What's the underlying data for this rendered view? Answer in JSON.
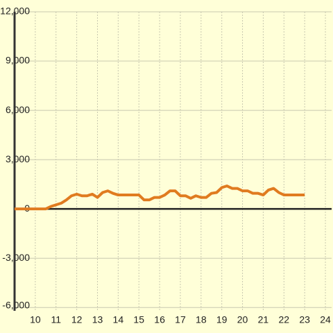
{
  "chart_data": {
    "type": "line",
    "x": [
      9,
      10.5,
      10.75,
      11,
      11.25,
      11.5,
      11.75,
      12,
      12.25,
      12.5,
      12.75,
      13,
      13.25,
      13.5,
      13.75,
      14,
      14.5,
      15,
      15.25,
      15.5,
      15.75,
      16,
      16.25,
      16.5,
      16.75,
      17,
      17.25,
      17.5,
      17.75,
      18,
      18.25,
      18.5,
      18.75,
      19,
      19.25,
      19.5,
      19.75,
      20,
      20.25,
      20.5,
      20.75,
      21,
      21.25,
      21.5,
      21.75,
      22,
      23
    ],
    "series": [
      {
        "color": "#e07b20",
        "values": [
          0,
          0,
          150,
          250,
          350,
          550,
          800,
          900,
          800,
          800,
          900,
          700,
          1000,
          1100,
          950,
          850,
          850,
          850,
          550,
          550,
          700,
          700,
          850,
          1100,
          1100,
          800,
          800,
          650,
          800,
          700,
          700,
          950,
          1000,
          1300,
          1400,
          1250,
          1250,
          1100,
          1100,
          950,
          950,
          850,
          1150,
          1250,
          1000,
          850,
          850
        ]
      }
    ],
    "xlim": [
      9,
      24.3
    ],
    "xticks": [
      10,
      11,
      12,
      13,
      14,
      15,
      16,
      17,
      18,
      19,
      20,
      21,
      22,
      23,
      24
    ],
    "ylim": [
      -6200,
      12000
    ],
    "yticks": [
      {
        "value": -6000,
        "label": "-6,000"
      },
      {
        "value": -3000,
        "label": "-3,000"
      },
      0,
      {
        "value": 3000,
        "label": "3,000"
      },
      {
        "value": 6000,
        "label": "6,000"
      },
      {
        "value": 9000,
        "label": "9,000"
      },
      {
        "value": 12000,
        "label": "12,000"
      }
    ],
    "grid": true
  }
}
